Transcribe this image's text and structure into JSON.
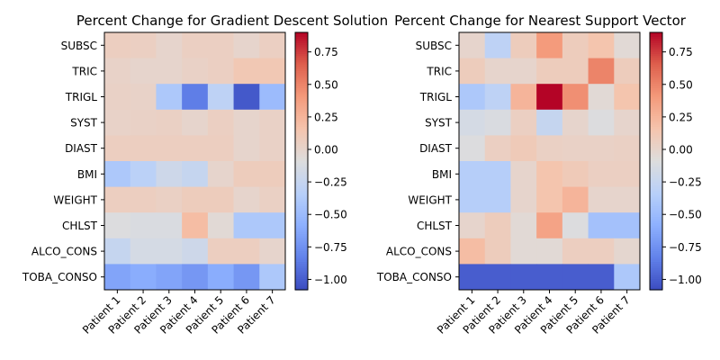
{
  "chart_data": [
    {
      "type": "heatmap",
      "title": "Percent Change for Gradient Descent Solution",
      "rows": [
        "SUBSC",
        "TRIC",
        "TRIGL",
        "SYST",
        "DIAST",
        "BMI",
        "WEIGHT",
        "CHLST",
        "ALCO_CONS",
        "TOBA_CONSO"
      ],
      "columns": [
        "Patient 1",
        "Patient 2",
        "Patient 3",
        "Patient 4",
        "Patient 5",
        "Patient 6",
        "Patient 7"
      ],
      "values": [
        [
          0.06,
          0.05,
          0.0,
          0.05,
          0.05,
          0.0,
          0.05
        ],
        [
          0.02,
          0.0,
          0.0,
          0.03,
          0.05,
          0.12,
          0.12
        ],
        [
          0.03,
          0.02,
          -0.4,
          -0.85,
          -0.3,
          -1.02,
          -0.5
        ],
        [
          0.02,
          0.03,
          0.04,
          0.0,
          0.05,
          0.0,
          0.03
        ],
        [
          0.06,
          0.06,
          0.06,
          0.06,
          0.06,
          0.0,
          0.03
        ],
        [
          -0.4,
          -0.32,
          -0.2,
          -0.25,
          0.0,
          0.08,
          0.08
        ],
        [
          0.06,
          0.06,
          0.04,
          0.08,
          0.08,
          0.0,
          0.04
        ],
        [
          -0.1,
          -0.12,
          -0.12,
          0.2,
          -0.05,
          -0.4,
          -0.4
        ],
        [
          -0.25,
          -0.15,
          -0.15,
          -0.2,
          0.06,
          0.06,
          0.0
        ],
        [
          -0.65,
          -0.6,
          -0.65,
          -0.72,
          -0.6,
          -0.72,
          -0.4
        ]
      ],
      "colorbar": {
        "colormap": "coolwarm",
        "vmin": -1.08,
        "vmax": 0.9,
        "ticks": [
          0.75,
          0.5,
          0.25,
          0.0,
          -0.25,
          -0.5,
          -0.75,
          -1.0
        ],
        "tick_labels": [
          "0.75",
          "0.50",
          "0.25",
          "0.00",
          "−0.25",
          "−0.50",
          "−0.75",
          "−1.00"
        ]
      }
    },
    {
      "type": "heatmap",
      "title": "Percent Change for Nearest Support Vector",
      "rows": [
        "SUBSC",
        "TRIC",
        "TRIGL",
        "SYST",
        "DIAST",
        "BMI",
        "WEIGHT",
        "CHLST",
        "ALCO_CONS",
        "TOBA_CONSO"
      ],
      "columns": [
        "Patient 1",
        "Patient 2",
        "Patient 3",
        "Patient 4",
        "Patient 5",
        "Patient 6",
        "Patient 7"
      ],
      "values": [
        [
          0.0,
          -0.3,
          0.08,
          0.4,
          0.08,
          0.15,
          -0.05
        ],
        [
          0.08,
          0.0,
          0.0,
          0.08,
          0.08,
          0.5,
          0.08
        ],
        [
          -0.4,
          -0.3,
          0.25,
          0.9,
          0.45,
          -0.05,
          0.15
        ],
        [
          -0.15,
          -0.12,
          0.05,
          -0.25,
          0.0,
          -0.1,
          0.0
        ],
        [
          -0.1,
          0.05,
          0.1,
          0.04,
          0.03,
          0.03,
          0.04
        ],
        [
          -0.35,
          -0.35,
          0.0,
          0.15,
          0.1,
          0.05,
          0.05
        ],
        [
          -0.35,
          -0.35,
          0.0,
          0.15,
          0.25,
          0.0,
          0.0
        ],
        [
          0.0,
          0.08,
          -0.05,
          0.35,
          -0.1,
          -0.45,
          -0.45
        ],
        [
          0.2,
          0.08,
          -0.05,
          -0.05,
          0.06,
          0.06,
          -0.02
        ],
        [
          -1.0,
          -1.0,
          -1.0,
          -1.0,
          -1.0,
          -1.0,
          -0.4
        ]
      ],
      "colorbar": {
        "colormap": "coolwarm",
        "vmin": -1.08,
        "vmax": 0.9,
        "ticks": [
          0.75,
          0.5,
          0.25,
          0.0,
          -0.25,
          -0.5,
          -0.75,
          -1.0
        ],
        "tick_labels": [
          "0.75",
          "0.50",
          "0.25",
          "0.00",
          "−0.25",
          "−0.50",
          "−0.75",
          "−1.00"
        ]
      }
    }
  ]
}
